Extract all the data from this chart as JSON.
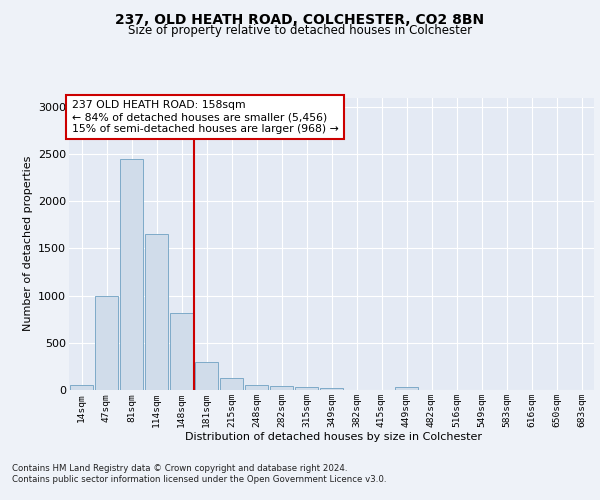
{
  "title1": "237, OLD HEATH ROAD, COLCHESTER, CO2 8BN",
  "title2": "Size of property relative to detached houses in Colchester",
  "xlabel": "Distribution of detached houses by size in Colchester",
  "ylabel": "Number of detached properties",
  "footnote1": "Contains HM Land Registry data © Crown copyright and database right 2024.",
  "footnote2": "Contains public sector information licensed under the Open Government Licence v3.0.",
  "annotation_line1": "237 OLD HEATH ROAD: 158sqm",
  "annotation_line2": "← 84% of detached houses are smaller (5,456)",
  "annotation_line3": "15% of semi-detached houses are larger (968) →",
  "bar_color": "#d0dcea",
  "bar_edge_color": "#7eaac8",
  "vline_color": "#cc0000",
  "vline_x": 4.5,
  "categories": [
    "14sqm",
    "47sqm",
    "81sqm",
    "114sqm",
    "148sqm",
    "181sqm",
    "215sqm",
    "248sqm",
    "282sqm",
    "315sqm",
    "349sqm",
    "382sqm",
    "415sqm",
    "449sqm",
    "482sqm",
    "516sqm",
    "549sqm",
    "583sqm",
    "616sqm",
    "650sqm",
    "683sqm"
  ],
  "values": [
    55,
    1000,
    2450,
    1650,
    820,
    300,
    130,
    50,
    45,
    35,
    20,
    0,
    0,
    30,
    0,
    0,
    0,
    0,
    0,
    0,
    0
  ],
  "ylim": [
    0,
    3100
  ],
  "yticks": [
    0,
    500,
    1000,
    1500,
    2000,
    2500,
    3000
  ],
  "background_color": "#eef2f8",
  "plot_background": "#e4eaf4"
}
